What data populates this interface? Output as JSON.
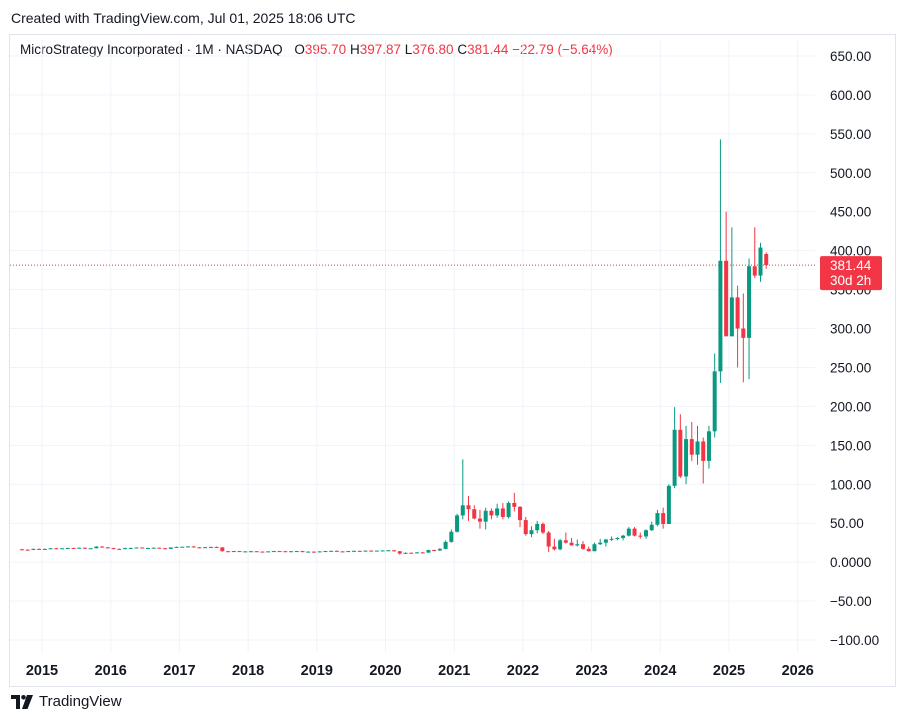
{
  "header": {
    "created_text": "Created with TradingView.com, Jul 01, 2025 18:06 UTC"
  },
  "legend": {
    "symbol": "MicroStrategy Incorporated · 1M · NASDAQ",
    "open_label": "O",
    "open": "395.70",
    "high_label": "H",
    "high": "397.87",
    "low_label": "L",
    "low": "376.80",
    "close_label": "C",
    "close": "381.44",
    "change": "−22.79 (−5.64%)"
  },
  "price_badge": {
    "price": "381.44",
    "countdown": "30d 2h"
  },
  "footer": {
    "brand": "TradingView"
  },
  "colors": {
    "up": "#089981",
    "down": "#f23645",
    "grid": "#f0f3fa",
    "text": "#131722"
  },
  "chart_data": {
    "type": "candlestick",
    "interval": "1M",
    "y_ticks": [
      "650.00",
      "600.00",
      "550.00",
      "500.00",
      "450.00",
      "400.00",
      "350.00",
      "300.00",
      "250.00",
      "200.00",
      "150.00",
      "100.00",
      "50.00",
      "0.0000",
      "−50.00",
      "−100.00"
    ],
    "y_range": [
      -100,
      650
    ],
    "x_ticks": [
      "2015",
      "2016",
      "2017",
      "2018",
      "2019",
      "2020",
      "2021",
      "2022",
      "2023",
      "2024",
      "2025",
      "2026"
    ],
    "last_price": 381.44,
    "candles": [
      {
        "t": "2014-09",
        "o": 16.5,
        "h": 17.0,
        "l": 15.5,
        "c": 16.0
      },
      {
        "t": "2014-10",
        "o": 16.0,
        "h": 16.5,
        "l": 15.0,
        "c": 15.8
      },
      {
        "t": "2014-11",
        "o": 15.8,
        "h": 17.5,
        "l": 15.5,
        "c": 17.0
      },
      {
        "t": "2014-12",
        "o": 17.0,
        "h": 17.5,
        "l": 15.8,
        "c": 16.2
      },
      {
        "t": "2015-01",
        "o": 16.2,
        "h": 17.5,
        "l": 15.8,
        "c": 17.0
      },
      {
        "t": "2015-02",
        "o": 17.0,
        "h": 18.0,
        "l": 16.8,
        "c": 17.8
      },
      {
        "t": "2015-03",
        "o": 17.8,
        "h": 18.5,
        "l": 17.0,
        "c": 17.5
      },
      {
        "t": "2015-04",
        "o": 17.5,
        "h": 18.0,
        "l": 17.0,
        "c": 17.8
      },
      {
        "t": "2015-05",
        "o": 17.8,
        "h": 18.5,
        "l": 17.5,
        "c": 18.2
      },
      {
        "t": "2015-06",
        "o": 18.2,
        "h": 18.5,
        "l": 17.5,
        "c": 18.0
      },
      {
        "t": "2015-07",
        "o": 18.0,
        "h": 18.8,
        "l": 17.8,
        "c": 18.5
      },
      {
        "t": "2015-08",
        "o": 18.5,
        "h": 18.8,
        "l": 17.0,
        "c": 17.5
      },
      {
        "t": "2015-09",
        "o": 17.5,
        "h": 18.0,
        "l": 17.0,
        "c": 17.8
      },
      {
        "t": "2015-10",
        "o": 17.8,
        "h": 20.5,
        "l": 17.5,
        "c": 20.0
      },
      {
        "t": "2015-11",
        "o": 20.0,
        "h": 20.5,
        "l": 18.5,
        "c": 19.0
      },
      {
        "t": "2015-12",
        "o": 19.0,
        "h": 19.5,
        "l": 17.5,
        "c": 18.0
      },
      {
        "t": "2016-01",
        "o": 18.0,
        "h": 18.5,
        "l": 16.5,
        "c": 17.0
      },
      {
        "t": "2016-02",
        "o": 17.0,
        "h": 17.5,
        "l": 16.0,
        "c": 16.8
      },
      {
        "t": "2016-03",
        "o": 16.8,
        "h": 18.5,
        "l": 16.5,
        "c": 18.0
      },
      {
        "t": "2016-04",
        "o": 18.0,
        "h": 18.5,
        "l": 17.5,
        "c": 18.2
      },
      {
        "t": "2016-05",
        "o": 18.2,
        "h": 19.0,
        "l": 17.8,
        "c": 18.8
      },
      {
        "t": "2016-06",
        "o": 18.8,
        "h": 19.0,
        "l": 17.5,
        "c": 17.8
      },
      {
        "t": "2016-07",
        "o": 17.8,
        "h": 18.5,
        "l": 17.5,
        "c": 18.2
      },
      {
        "t": "2016-08",
        "o": 18.2,
        "h": 18.8,
        "l": 17.8,
        "c": 18.5
      },
      {
        "t": "2016-09",
        "o": 18.5,
        "h": 18.8,
        "l": 17.5,
        "c": 17.8
      },
      {
        "t": "2016-10",
        "o": 17.8,
        "h": 18.2,
        "l": 16.5,
        "c": 17.0
      },
      {
        "t": "2016-11",
        "o": 17.0,
        "h": 19.0,
        "l": 16.8,
        "c": 18.8
      },
      {
        "t": "2016-12",
        "o": 18.8,
        "h": 20.0,
        "l": 18.5,
        "c": 19.5
      },
      {
        "t": "2017-01",
        "o": 19.5,
        "h": 20.0,
        "l": 19.0,
        "c": 19.8
      },
      {
        "t": "2017-02",
        "o": 19.8,
        "h": 20.5,
        "l": 19.5,
        "c": 20.2
      },
      {
        "t": "2017-03",
        "o": 20.2,
        "h": 20.5,
        "l": 18.5,
        "c": 19.0
      },
      {
        "t": "2017-04",
        "o": 19.0,
        "h": 19.5,
        "l": 18.0,
        "c": 18.5
      },
      {
        "t": "2017-05",
        "o": 18.5,
        "h": 19.5,
        "l": 18.2,
        "c": 19.2
      },
      {
        "t": "2017-06",
        "o": 19.2,
        "h": 19.8,
        "l": 18.5,
        "c": 19.5
      },
      {
        "t": "2017-07",
        "o": 19.5,
        "h": 20.0,
        "l": 18.5,
        "c": 19.0
      },
      {
        "t": "2017-08",
        "o": 19.0,
        "h": 19.2,
        "l": 13.5,
        "c": 14.0
      },
      {
        "t": "2017-09",
        "o": 14.0,
        "h": 14.5,
        "l": 13.0,
        "c": 13.5
      },
      {
        "t": "2017-10",
        "o": 13.5,
        "h": 14.5,
        "l": 13.2,
        "c": 14.2
      },
      {
        "t": "2017-11",
        "o": 14.2,
        "h": 14.5,
        "l": 13.0,
        "c": 13.5
      },
      {
        "t": "2017-12",
        "o": 13.5,
        "h": 14.0,
        "l": 13.0,
        "c": 13.8
      },
      {
        "t": "2018-01",
        "o": 13.8,
        "h": 14.5,
        "l": 13.5,
        "c": 14.0
      },
      {
        "t": "2018-02",
        "o": 14.0,
        "h": 14.2,
        "l": 13.0,
        "c": 13.5
      },
      {
        "t": "2018-03",
        "o": 13.5,
        "h": 13.8,
        "l": 12.8,
        "c": 13.2
      },
      {
        "t": "2018-04",
        "o": 13.2,
        "h": 14.0,
        "l": 13.0,
        "c": 13.8
      },
      {
        "t": "2018-05",
        "o": 13.8,
        "h": 14.5,
        "l": 13.5,
        "c": 14.2
      },
      {
        "t": "2018-06",
        "o": 14.2,
        "h": 14.5,
        "l": 13.8,
        "c": 14.0
      },
      {
        "t": "2018-07",
        "o": 14.0,
        "h": 14.5,
        "l": 13.2,
        "c": 13.5
      },
      {
        "t": "2018-08",
        "o": 13.5,
        "h": 14.2,
        "l": 13.2,
        "c": 14.0
      },
      {
        "t": "2018-09",
        "o": 14.0,
        "h": 14.5,
        "l": 13.8,
        "c": 14.2
      },
      {
        "t": "2018-10",
        "o": 14.2,
        "h": 14.5,
        "l": 12.5,
        "c": 13.0
      },
      {
        "t": "2018-11",
        "o": 13.0,
        "h": 13.8,
        "l": 12.5,
        "c": 13.5
      },
      {
        "t": "2018-12",
        "o": 13.5,
        "h": 13.8,
        "l": 12.0,
        "c": 12.8
      },
      {
        "t": "2019-01",
        "o": 12.8,
        "h": 14.0,
        "l": 12.5,
        "c": 13.8
      },
      {
        "t": "2019-02",
        "o": 13.8,
        "h": 14.5,
        "l": 13.5,
        "c": 14.2
      },
      {
        "t": "2019-03",
        "o": 14.2,
        "h": 14.8,
        "l": 13.8,
        "c": 14.5
      },
      {
        "t": "2019-04",
        "o": 14.5,
        "h": 15.0,
        "l": 13.5,
        "c": 13.8
      },
      {
        "t": "2019-05",
        "o": 13.8,
        "h": 14.2,
        "l": 13.0,
        "c": 13.5
      },
      {
        "t": "2019-06",
        "o": 13.5,
        "h": 14.5,
        "l": 13.2,
        "c": 14.2
      },
      {
        "t": "2019-07",
        "o": 14.2,
        "h": 14.8,
        "l": 13.8,
        "c": 14.5
      },
      {
        "t": "2019-08",
        "o": 14.5,
        "h": 14.8,
        "l": 13.5,
        "c": 13.8
      },
      {
        "t": "2019-09",
        "o": 13.8,
        "h": 15.0,
        "l": 13.5,
        "c": 14.8
      },
      {
        "t": "2019-10",
        "o": 14.8,
        "h": 15.2,
        "l": 14.2,
        "c": 14.5
      },
      {
        "t": "2019-11",
        "o": 14.5,
        "h": 15.0,
        "l": 14.0,
        "c": 14.8
      },
      {
        "t": "2019-12",
        "o": 14.8,
        "h": 15.2,
        "l": 14.2,
        "c": 15.0
      },
      {
        "t": "2020-01",
        "o": 15.0,
        "h": 15.5,
        "l": 14.5,
        "c": 15.2
      },
      {
        "t": "2020-02",
        "o": 15.2,
        "h": 15.5,
        "l": 13.5,
        "c": 14.0
      },
      {
        "t": "2020-03",
        "o": 14.0,
        "h": 14.2,
        "l": 9.5,
        "c": 11.0
      },
      {
        "t": "2020-04",
        "o": 11.0,
        "h": 12.5,
        "l": 10.5,
        "c": 12.0
      },
      {
        "t": "2020-05",
        "o": 12.0,
        "h": 12.5,
        "l": 11.0,
        "c": 11.5
      },
      {
        "t": "2020-06",
        "o": 11.5,
        "h": 12.8,
        "l": 11.2,
        "c": 12.5
      },
      {
        "t": "2020-07",
        "o": 12.5,
        "h": 13.0,
        "l": 11.8,
        "c": 12.2
      },
      {
        "t": "2020-08",
        "o": 12.2,
        "h": 16.0,
        "l": 12.0,
        "c": 15.5
      },
      {
        "t": "2020-09",
        "o": 15.5,
        "h": 16.0,
        "l": 14.0,
        "c": 15.0
      },
      {
        "t": "2020-10",
        "o": 15.0,
        "h": 18.0,
        "l": 14.5,
        "c": 17.0
      },
      {
        "t": "2020-11",
        "o": 17.0,
        "h": 28.0,
        "l": 16.5,
        "c": 26.0
      },
      {
        "t": "2020-12",
        "o": 26.0,
        "h": 42.0,
        "l": 25.0,
        "c": 39.0
      },
      {
        "t": "2021-01",
        "o": 39.0,
        "h": 62.0,
        "l": 38.0,
        "c": 60.0
      },
      {
        "t": "2021-02",
        "o": 60.0,
        "h": 132.0,
        "l": 55.0,
        "c": 73.0
      },
      {
        "t": "2021-03",
        "o": 73.0,
        "h": 85.0,
        "l": 53.0,
        "c": 68.0
      },
      {
        "t": "2021-04",
        "o": 68.0,
        "h": 73.0,
        "l": 55.0,
        "c": 56.0
      },
      {
        "t": "2021-05",
        "o": 56.0,
        "h": 67.0,
        "l": 43.0,
        "c": 52.0
      },
      {
        "t": "2021-06",
        "o": 52.0,
        "h": 70.0,
        "l": 42.0,
        "c": 66.0
      },
      {
        "t": "2021-07",
        "o": 66.0,
        "h": 69.0,
        "l": 55.0,
        "c": 60.0
      },
      {
        "t": "2021-08",
        "o": 60.0,
        "h": 75.0,
        "l": 57.0,
        "c": 69.0
      },
      {
        "t": "2021-09",
        "o": 69.0,
        "h": 76.0,
        "l": 55.0,
        "c": 58.0
      },
      {
        "t": "2021-10",
        "o": 58.0,
        "h": 78.0,
        "l": 56.0,
        "c": 76.0
      },
      {
        "t": "2021-11",
        "o": 76.0,
        "h": 89.0,
        "l": 65.0,
        "c": 71.0
      },
      {
        "t": "2021-12",
        "o": 71.0,
        "h": 72.0,
        "l": 45.0,
        "c": 54.0
      },
      {
        "t": "2022-01",
        "o": 54.0,
        "h": 58.0,
        "l": 34.0,
        "c": 36.0
      },
      {
        "t": "2022-02",
        "o": 36.0,
        "h": 46.0,
        "l": 32.0,
        "c": 41.0
      },
      {
        "t": "2022-03",
        "o": 41.0,
        "h": 53.0,
        "l": 37.0,
        "c": 49.0
      },
      {
        "t": "2022-04",
        "o": 49.0,
        "h": 51.0,
        "l": 36.0,
        "c": 38.0
      },
      {
        "t": "2022-05",
        "o": 38.0,
        "h": 40.0,
        "l": 13.0,
        "c": 20.0
      },
      {
        "t": "2022-06",
        "o": 20.0,
        "h": 30.0,
        "l": 15.0,
        "c": 16.5
      },
      {
        "t": "2022-07",
        "o": 16.5,
        "h": 30.0,
        "l": 15.0,
        "c": 28.0
      },
      {
        "t": "2022-08",
        "o": 28.0,
        "h": 38.0,
        "l": 24.0,
        "c": 25.0
      },
      {
        "t": "2022-09",
        "o": 25.0,
        "h": 31.0,
        "l": 21.0,
        "c": 21.5
      },
      {
        "t": "2022-10",
        "o": 21.5,
        "h": 29.0,
        "l": 20.0,
        "c": 23.0
      },
      {
        "t": "2022-11",
        "o": 23.0,
        "h": 27.0,
        "l": 16.0,
        "c": 17.0
      },
      {
        "t": "2022-12",
        "o": 17.0,
        "h": 20.0,
        "l": 13.5,
        "c": 14.0
      },
      {
        "t": "2023-01",
        "o": 14.0,
        "h": 25.0,
        "l": 14.0,
        "c": 23.0
      },
      {
        "t": "2023-02",
        "o": 23.0,
        "h": 30.0,
        "l": 22.0,
        "c": 25.0
      },
      {
        "t": "2023-03",
        "o": 25.0,
        "h": 30.0,
        "l": 20.0,
        "c": 29.0
      },
      {
        "t": "2023-04",
        "o": 29.0,
        "h": 33.0,
        "l": 27.0,
        "c": 30.0
      },
      {
        "t": "2023-05",
        "o": 30.0,
        "h": 32.0,
        "l": 28.0,
        "c": 31.0
      },
      {
        "t": "2023-06",
        "o": 31.0,
        "h": 35.0,
        "l": 28.0,
        "c": 34.0
      },
      {
        "t": "2023-07",
        "o": 34.0,
        "h": 45.0,
        "l": 33.0,
        "c": 43.0
      },
      {
        "t": "2023-08",
        "o": 43.0,
        "h": 45.0,
        "l": 33.0,
        "c": 34.0
      },
      {
        "t": "2023-09",
        "o": 34.0,
        "h": 38.0,
        "l": 30.0,
        "c": 33.0
      },
      {
        "t": "2023-10",
        "o": 33.0,
        "h": 42.0,
        "l": 30.0,
        "c": 41.0
      },
      {
        "t": "2023-11",
        "o": 41.0,
        "h": 52.0,
        "l": 40.0,
        "c": 48.0
      },
      {
        "t": "2023-12",
        "o": 48.0,
        "h": 67.0,
        "l": 46.0,
        "c": 63.0
      },
      {
        "t": "2024-01",
        "o": 63.0,
        "h": 70.0,
        "l": 43.0,
        "c": 49.0
      },
      {
        "t": "2024-02",
        "o": 49.0,
        "h": 100.0,
        "l": 49.0,
        "c": 98.0
      },
      {
        "t": "2024-03",
        "o": 98.0,
        "h": 199.0,
        "l": 95.0,
        "c": 170.0
      },
      {
        "t": "2024-04",
        "o": 170.0,
        "h": 190.0,
        "l": 108.0,
        "c": 110.0
      },
      {
        "t": "2024-05",
        "o": 110.0,
        "h": 175.0,
        "l": 100.0,
        "c": 158.0
      },
      {
        "t": "2024-06",
        "o": 158.0,
        "h": 180.0,
        "l": 130.0,
        "c": 138.0
      },
      {
        "t": "2024-07",
        "o": 138.0,
        "h": 175.0,
        "l": 125.0,
        "c": 155.0
      },
      {
        "t": "2024-08",
        "o": 155.0,
        "h": 160.0,
        "l": 101.0,
        "c": 130.0
      },
      {
        "t": "2024-09",
        "o": 130.0,
        "h": 175.0,
        "l": 120.0,
        "c": 168.0
      },
      {
        "t": "2024-10",
        "o": 168.0,
        "h": 268.0,
        "l": 160.0,
        "c": 245.0
      },
      {
        "t": "2024-11",
        "o": 245.0,
        "h": 543.0,
        "l": 230.0,
        "c": 387.0
      },
      {
        "t": "2024-12",
        "o": 387.0,
        "h": 450.0,
        "l": 290.0,
        "c": 290.0
      },
      {
        "t": "2025-01",
        "o": 290.0,
        "h": 430.0,
        "l": 290.0,
        "c": 340.0
      },
      {
        "t": "2025-02",
        "o": 340.0,
        "h": 355.0,
        "l": 250.0,
        "c": 300.0
      },
      {
        "t": "2025-03",
        "o": 300.0,
        "h": 345.0,
        "l": 231.0,
        "c": 288.0
      },
      {
        "t": "2025-04",
        "o": 288.0,
        "h": 390.0,
        "l": 235.0,
        "c": 380.0
      },
      {
        "t": "2025-05",
        "o": 380.0,
        "h": 430.0,
        "l": 365.0,
        "c": 368.0
      },
      {
        "t": "2025-06",
        "o": 368.0,
        "h": 410.0,
        "l": 360.0,
        "c": 404.0
      },
      {
        "t": "2025-07",
        "o": 395.7,
        "h": 397.87,
        "l": 376.8,
        "c": 381.44
      }
    ]
  }
}
